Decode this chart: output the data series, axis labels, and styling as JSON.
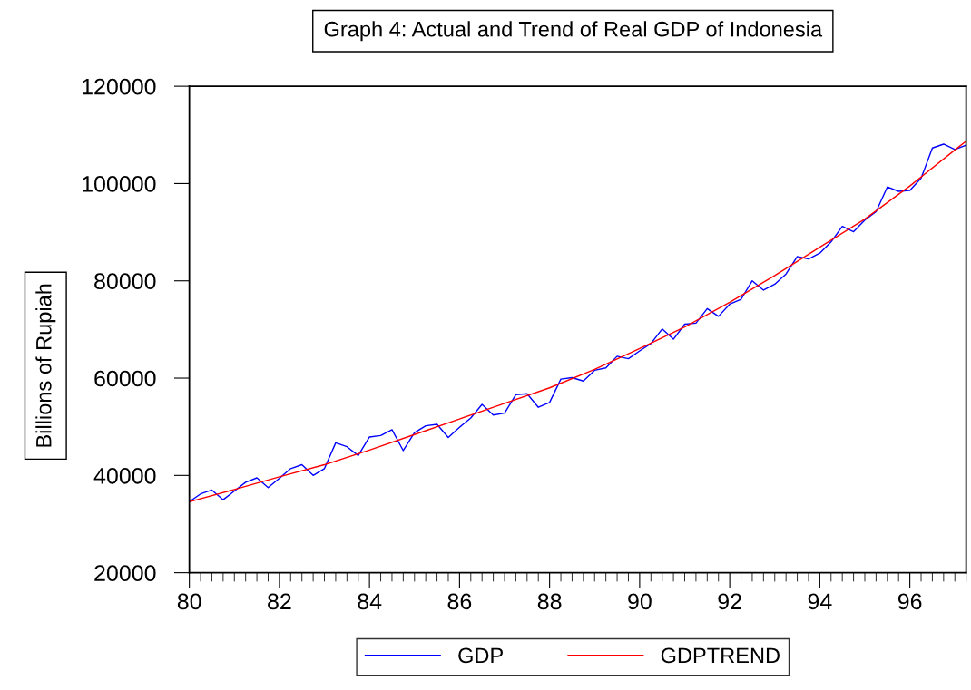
{
  "chart_data": {
    "type": "line",
    "title": "Graph 4: Actual and Trend of Real GDP of Indonesia",
    "ylabel": "Billions of Rupiah",
    "xlim": [
      80,
      97.25
    ],
    "ylim": [
      20000,
      120000
    ],
    "xticks": [
      80,
      82,
      84,
      86,
      88,
      90,
      92,
      94,
      96
    ],
    "yticks": [
      20000,
      40000,
      60000,
      80000,
      100000,
      120000
    ],
    "grid": false,
    "legend": "bottom",
    "line_style": "solid",
    "marker": "none",
    "series": [
      {
        "name": "GDP",
        "color": "#0000ff",
        "x": [
          80,
          80.25,
          80.5,
          80.75,
          81,
          81.25,
          81.5,
          81.75,
          82,
          82.25,
          82.5,
          82.75,
          83,
          83.25,
          83.5,
          83.75,
          84,
          84.25,
          84.5,
          84.75,
          85,
          85.25,
          85.5,
          85.75,
          86,
          86.25,
          86.5,
          86.75,
          87,
          87.25,
          87.5,
          87.75,
          88,
          88.25,
          88.5,
          88.75,
          89,
          89.25,
          89.5,
          89.75,
          90,
          90.25,
          90.5,
          90.75,
          91,
          91.25,
          91.5,
          91.75,
          92,
          92.25,
          92.5,
          92.75,
          93,
          93.25,
          93.5,
          93.75,
          94,
          94.25,
          94.5,
          94.75,
          95,
          95.25,
          95.5,
          95.75,
          96,
          96.25,
          96.5,
          96.75,
          97,
          97.25
        ],
        "values": [
          34600,
          36200,
          37000,
          35000,
          36800,
          38600,
          39500,
          37500,
          39400,
          41400,
          42200,
          40000,
          41400,
          46700,
          45900,
          44100,
          47900,
          48200,
          49400,
          45100,
          48800,
          50200,
          50500,
          47800,
          49900,
          51800,
          54600,
          52400,
          52800,
          56600,
          56800,
          54000,
          55000,
          59800,
          60100,
          59400,
          61600,
          62100,
          64500,
          64000,
          65600,
          67100,
          70100,
          68000,
          71100,
          71300,
          74300,
          72700,
          75200,
          76200,
          80000,
          78100,
          79300,
          81400,
          85000,
          84500,
          85700,
          88000,
          91200,
          90100,
          92500,
          94200,
          99300,
          98400,
          98600,
          101100,
          107300,
          108100,
          107000,
          107900
        ]
      },
      {
        "name": "GDPTREND",
        "color": "#ff0000",
        "x": [
          80,
          81,
          82,
          83,
          84,
          85,
          86,
          87,
          88,
          89,
          90,
          91,
          92,
          93,
          94,
          95,
          96,
          97,
          97.25
        ],
        "values": [
          34600,
          37100,
          39700,
          42200,
          45200,
          48400,
          51600,
          54800,
          58000,
          61800,
          66100,
          70500,
          75600,
          81100,
          86900,
          92700,
          99500,
          106900,
          108700
        ]
      }
    ]
  }
}
